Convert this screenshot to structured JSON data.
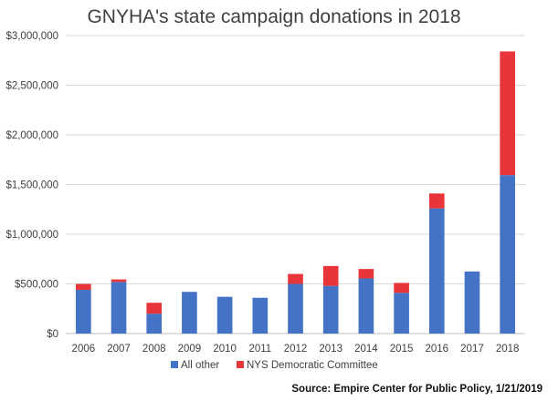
{
  "chart_data": {
    "type": "bar",
    "stacked": true,
    "title": "GNYHA's state campaign donations in 2018",
    "xlabel": "",
    "ylabel": "",
    "ylim": [
      0,
      3000000
    ],
    "yticks": [
      0,
      500000,
      1000000,
      1500000,
      2000000,
      2500000,
      3000000
    ],
    "ytick_labels": [
      "$0",
      "$500,000",
      "$1,000,000",
      "$1,500,000",
      "$2,000,000",
      "$2,500,000",
      "$3,000,000"
    ],
    "grid": true,
    "legend_position": "bottom",
    "categories": [
      "2006",
      "2007",
      "2008",
      "2009",
      "2010",
      "2011",
      "2012",
      "2013",
      "2014",
      "2015",
      "2016",
      "2017",
      "2018"
    ],
    "series": [
      {
        "name": "All other",
        "color": "#4472C4",
        "values": [
          440000,
          520000,
          200000,
          420000,
          370000,
          360000,
          500000,
          480000,
          555000,
          410000,
          1260000,
          625000,
          1595000
        ]
      },
      {
        "name": "NYS Democratic Committee",
        "color": "#E8353A",
        "values": [
          60000,
          25000,
          110000,
          0,
          0,
          0,
          100000,
          200000,
          95000,
          100000,
          150000,
          0,
          1245000
        ]
      }
    ],
    "source": "Source: Empire Center for Public Policy, 1/21/2019"
  }
}
